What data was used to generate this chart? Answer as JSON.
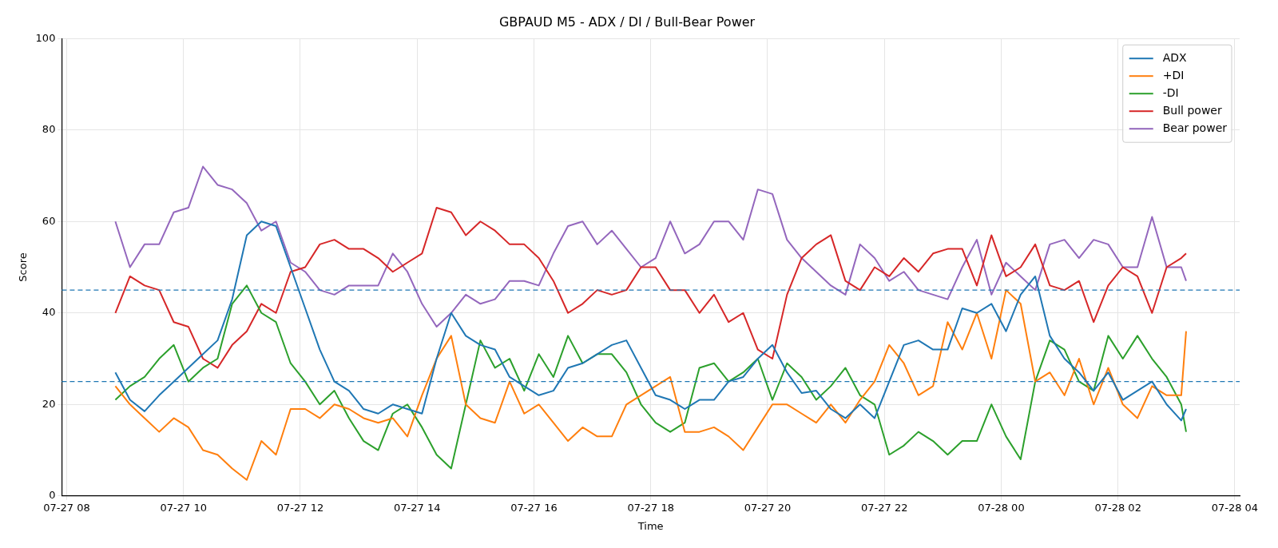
{
  "chart_data": {
    "type": "line",
    "title": "GBPAUD M5 - ADX / DI / Bull-Bear Power",
    "xlabel": "Time",
    "ylabel": "Score",
    "x": [
      "--07-27T08:50",
      "--07-27T09:05",
      "--07-27T09:20",
      "--07-27T09:35",
      "--07-27T09:50",
      "--07-27T10:05",
      "--07-27T10:20",
      "--07-27T10:35",
      "--07-27T10:50",
      "--07-27T11:05",
      "--07-27T11:20",
      "--07-27T11:35",
      "--07-27T11:50",
      "--07-27T12:05",
      "--07-27T12:20",
      "--07-27T12:35",
      "--07-27T12:50",
      "--07-27T13:05",
      "--07-27T13:20",
      "--07-27T13:35",
      "--07-27T13:50",
      "--07-27T14:05",
      "--07-27T14:20",
      "--07-27T14:35",
      "--07-27T14:50",
      "--07-27T15:05",
      "--07-27T15:20",
      "--07-27T15:35",
      "--07-27T15:50",
      "--07-27T16:05",
      "--07-27T16:20",
      "--07-27T16:35",
      "--07-27T16:50",
      "--07-27T17:05",
      "--07-27T17:20",
      "--07-27T17:35",
      "--07-27T17:50",
      "--07-27T18:05",
      "--07-27T18:20",
      "--07-27T18:35",
      "--07-27T18:50",
      "--07-27T19:05",
      "--07-27T19:20",
      "--07-27T19:35",
      "--07-27T19:50",
      "--07-27T20:05",
      "--07-27T20:20",
      "--07-27T20:35",
      "--07-27T20:50",
      "--07-27T21:05",
      "--07-27T21:20",
      "--07-27T21:35",
      "--07-27T21:50",
      "--07-27T22:05",
      "--07-27T22:20",
      "--07-27T22:35",
      "--07-27T22:50",
      "--07-27T23:05",
      "--07-27T23:20",
      "--07-27T23:35",
      "--07-27T23:50",
      "--07-28T00:05",
      "--07-28T00:20",
      "--07-28T00:35",
      "--07-28T00:50",
      "--07-28T01:05",
      "--07-28T01:20",
      "--07-28T01:35",
      "--07-28T01:50",
      "--07-28T02:05",
      "--07-28T02:20",
      "--07-28T02:35",
      "--07-28T02:50",
      "--07-28T03:05",
      "--07-28T03:10"
    ],
    "series": [
      {
        "name": "ADX",
        "color": "#1f77b4",
        "values": [
          27,
          21,
          18.5,
          22,
          25,
          28,
          31,
          34,
          43,
          57,
          60,
          59,
          50,
          41,
          32,
          25,
          23,
          19,
          18,
          20,
          19,
          18,
          30,
          40,
          35,
          33,
          32,
          26,
          24,
          22,
          23,
          28,
          29,
          31,
          33,
          34,
          28,
          22,
          21,
          19,
          21,
          21,
          25,
          26,
          30,
          33,
          27,
          22.5,
          23,
          19,
          17,
          20,
          17,
          25,
          33,
          34,
          32,
          32,
          41,
          40,
          42,
          36,
          44,
          48,
          35,
          30,
          27,
          23,
          27,
          21,
          23,
          25,
          20,
          16.5,
          19
        ]
      },
      {
        "name": "+DI",
        "color": "#ff7f0e",
        "values": [
          24,
          20,
          17,
          14,
          17,
          15,
          10,
          9,
          6,
          3.5,
          12,
          9,
          19,
          19,
          17,
          20,
          19,
          17,
          16,
          17,
          13,
          22,
          30,
          35,
          20,
          17,
          16,
          25,
          18,
          20,
          16,
          12,
          15,
          13,
          13,
          20,
          22,
          24,
          26,
          14,
          14,
          15,
          13,
          10,
          15,
          20,
          20,
          18,
          16,
          20,
          16,
          21,
          25,
          33,
          29,
          22,
          24,
          38,
          32,
          40,
          30,
          45,
          42,
          25,
          27,
          22,
          30,
          20,
          28,
          20,
          17,
          24,
          22,
          22,
          36
        ]
      },
      {
        "name": "-DI",
        "color": "#2ca02c",
        "values": [
          21,
          24,
          26,
          30,
          33,
          25,
          28,
          30,
          42,
          46,
          40,
          38,
          29,
          25,
          20,
          23,
          17,
          12,
          10,
          18,
          20,
          15,
          9,
          6,
          20,
          34,
          28,
          30,
          23,
          31,
          26,
          35,
          29,
          31,
          31,
          27,
          20,
          16,
          14,
          16,
          28,
          29,
          25,
          27,
          30,
          21,
          29,
          26,
          21,
          24,
          28,
          22,
          20,
          9,
          11,
          14,
          12,
          9,
          12,
          12,
          20,
          13,
          8,
          25,
          34,
          32,
          25,
          23,
          35,
          30,
          35,
          30,
          26,
          20,
          14
        ]
      },
      {
        "name": "Bull power",
        "color": "#d62728",
        "values": [
          40,
          48,
          46,
          45,
          38,
          37,
          30,
          28,
          33,
          36,
          42,
          40,
          49,
          50,
          55,
          56,
          54,
          54,
          52,
          49,
          51,
          53,
          63,
          62,
          57,
          60,
          58,
          55,
          55,
          52,
          47,
          40,
          42,
          45,
          44,
          45,
          50,
          50,
          45,
          45,
          40,
          44,
          38,
          40,
          32,
          30,
          44,
          52,
          55,
          57,
          47,
          45,
          50,
          48,
          52,
          49,
          53,
          54,
          54,
          46,
          57,
          48,
          50,
          55,
          46,
          45,
          47,
          38,
          46,
          50,
          48,
          40,
          50,
          52,
          53
        ]
      },
      {
        "name": "Bear power",
        "color": "#9467bd",
        "values": [
          60,
          50,
          55,
          55,
          62,
          63,
          72,
          68,
          67,
          64,
          58,
          60,
          51,
          49,
          45,
          44,
          46,
          46,
          46,
          53,
          49,
          42,
          37,
          40,
          44,
          42,
          43,
          47,
          47,
          46,
          53,
          59,
          60,
          55,
          58,
          54,
          50,
          52,
          60,
          53,
          55,
          60,
          60,
          56,
          67,
          66,
          56,
          52,
          49,
          46,
          44,
          55,
          52,
          47,
          49,
          45,
          44,
          43,
          50,
          56,
          44,
          51,
          48,
          45,
          55,
          56,
          52,
          56,
          55,
          50,
          50,
          61,
          50,
          50,
          47
        ]
      }
    ],
    "xlim": [
      "--07-27T07:55",
      "--07-28T04:05"
    ],
    "xticks": [
      {
        "value": "--07-27T08:00",
        "label": "07-27 08"
      },
      {
        "value": "--07-27T10:00",
        "label": "07-27 10"
      },
      {
        "value": "--07-27T12:00",
        "label": "07-27 12"
      },
      {
        "value": "--07-27T14:00",
        "label": "07-27 14"
      },
      {
        "value": "--07-27T16:00",
        "label": "07-27 16"
      },
      {
        "value": "--07-27T18:00",
        "label": "07-27 18"
      },
      {
        "value": "--07-27T20:00",
        "label": "07-27 20"
      },
      {
        "value": "--07-27T22:00",
        "label": "07-27 22"
      },
      {
        "value": "--07-28T00:00",
        "label": "07-28 00"
      },
      {
        "value": "--07-28T02:00",
        "label": "07-28 02"
      },
      {
        "value": "--07-28T04:00",
        "label": "07-28 04"
      }
    ],
    "ylim": [
      0,
      100
    ],
    "yticks": [
      0,
      20,
      40,
      60,
      80,
      100
    ],
    "ref_lines": [
      {
        "axis": "y",
        "value": 45,
        "color": "#1f77b4",
        "line_style": "dashed"
      },
      {
        "axis": "y",
        "value": 25,
        "color": "#1f77b4",
        "line_style": "dashed"
      }
    ],
    "grid": true,
    "legend": "top right",
    "marker": "none",
    "line_style": "solid"
  }
}
